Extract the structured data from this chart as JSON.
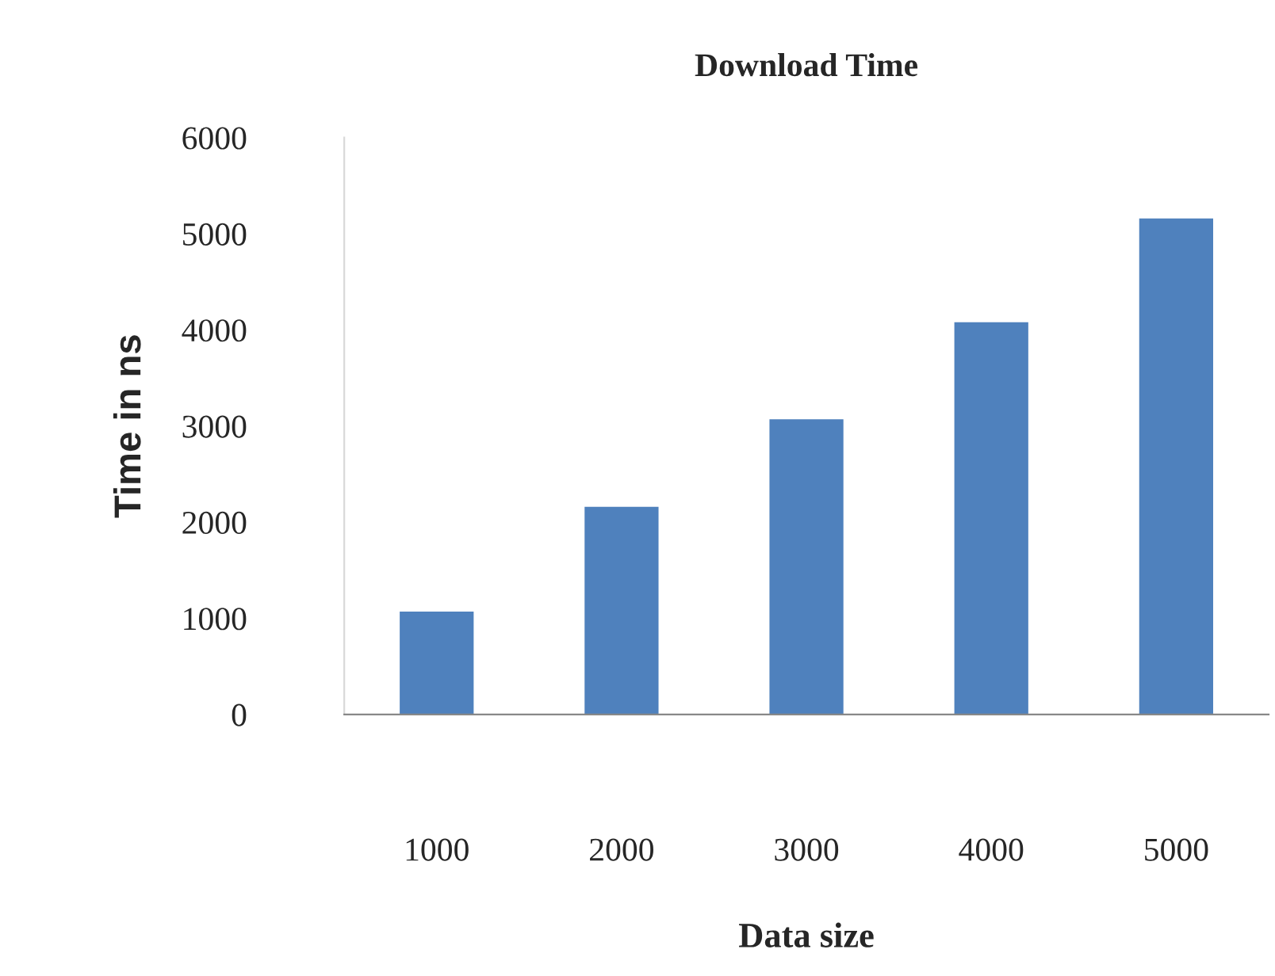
{
  "chart_data": {
    "type": "bar",
    "title": "Download Time",
    "xlabel": "Data size",
    "ylabel": "Time in ns",
    "categories": [
      "1000",
      "2000",
      "3000",
      "4000",
      "5000"
    ],
    "values": [
      1070,
      2160,
      3070,
      4080,
      5160
    ],
    "color": "#4f81bd",
    "ylim": [
      0,
      6000
    ],
    "yticks": [
      0,
      1000,
      2000,
      3000,
      4000,
      5000,
      6000
    ],
    "grid": false,
    "legend": false
  }
}
